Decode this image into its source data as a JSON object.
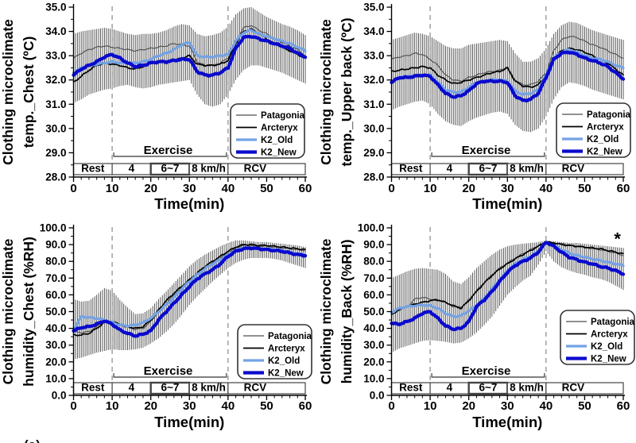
{
  "figure": {
    "caption_fragment": "(a)"
  },
  "colors": {
    "patagonia": "#4d4d4d",
    "arcteryx": "#000000",
    "k2_old": "#74a2e5",
    "k2_new": "#0a0ace",
    "error_bar": "#2e2e2e",
    "dashed_line": "#9a9a9a",
    "axis": "#000000",
    "phase_box_border": "#444444"
  },
  "series_meta": {
    "Patagonia": {
      "color": "#4d4d4d",
      "width": 1.1
    },
    "Arcteryx": {
      "color": "#000000",
      "width": 1.7
    },
    "K2_Old": {
      "color": "#74a2e5",
      "width": 3.2
    },
    "K2_New": {
      "color": "#0a0ace",
      "width": 4.3
    }
  },
  "legend_order": [
    "Patagonia",
    "Arcteryx",
    "K2_Old",
    "K2_New"
  ],
  "x_axis": {
    "label": "Time(min)",
    "ticks": [
      0,
      10,
      20,
      30,
      40,
      50,
      60
    ],
    "minor_step": 2,
    "range": [
      0,
      60
    ]
  },
  "phases": [
    {
      "label": "Rest",
      "from": 0,
      "to": 10,
      "bold": false
    },
    {
      "label": "4",
      "from": 10,
      "to": 20,
      "bold": false
    },
    {
      "label": "6~7",
      "from": 20,
      "to": 30,
      "bold": true
    },
    {
      "label": "8 km/h",
      "from": 30,
      "to": 40,
      "bold": false
    },
    {
      "label": "RCV",
      "from": 40,
      "to": 60,
      "bold": false,
      "label_at": 47
    }
  ],
  "exercise": {
    "label": "Exercise",
    "from": 10,
    "to": 40,
    "center_at": 24.5
  },
  "dashed_lines_x": [
    10,
    40
  ],
  "chart_data": [
    {
      "id": "temp_chest",
      "type": "line",
      "position": "top-left",
      "kind": "temp",
      "ylabel_line1": "Clothing microclimate",
      "ylabel_line2": "temp._Chest (ºC)",
      "xlabel": "Time(min)",
      "ylim": [
        28,
        35
      ],
      "ytick_step": 1,
      "ytick_labels": [
        "35.0",
        "34.0",
        "33.0",
        "32.0",
        "31.0",
        "30.0",
        "29.0",
        "28.0"
      ],
      "x_step": 2,
      "series": [
        {
          "name": "Patagonia",
          "values": [
            32.9,
            33.1,
            33.25,
            33.35,
            33.4,
            33.35,
            33.3,
            33.25,
            33.2,
            33.25,
            33.3,
            33.35,
            33.4,
            33.5,
            33.45,
            33.4,
            32.75,
            32.6,
            32.6,
            32.7,
            32.9,
            33.6,
            34.15,
            34.25,
            34.05,
            33.9,
            33.7,
            33.55,
            33.4,
            33.25,
            33.0
          ]
        },
        {
          "name": "Arcteryx",
          "values": [
            31.9,
            32.15,
            32.4,
            32.6,
            32.7,
            32.65,
            32.6,
            32.5,
            32.45,
            32.55,
            32.7,
            32.75,
            32.75,
            32.8,
            32.9,
            33.0,
            32.65,
            32.6,
            32.6,
            32.65,
            32.8,
            33.5,
            34.0,
            34.1,
            33.9,
            33.7,
            33.5,
            33.35,
            33.2,
            33.05,
            32.9
          ]
        },
        {
          "name": "K2_Old",
          "values": [
            32.3,
            32.5,
            32.6,
            32.65,
            32.7,
            32.75,
            32.7,
            32.7,
            32.7,
            32.75,
            32.85,
            33.0,
            33.1,
            33.25,
            33.45,
            33.55,
            33.0,
            32.95,
            32.95,
            33.0,
            33.05,
            33.6,
            33.95,
            34.05,
            33.9,
            33.8,
            33.7,
            33.6,
            33.5,
            33.35,
            33.2
          ]
        },
        {
          "name": "K2_New",
          "values": [
            32.2,
            32.45,
            32.6,
            32.75,
            32.95,
            33.05,
            32.9,
            32.7,
            32.55,
            32.6,
            32.7,
            32.75,
            32.75,
            32.8,
            32.85,
            32.85,
            32.35,
            32.2,
            32.2,
            32.3,
            32.5,
            33.3,
            33.75,
            33.8,
            33.7,
            33.6,
            33.5,
            33.4,
            33.3,
            33.1,
            32.95
          ]
        }
      ],
      "band": {
        "upper": [
          33.9,
          34.0,
          34.05,
          34.1,
          34.15,
          34.1,
          34.0,
          33.9,
          33.85,
          33.9,
          33.9,
          33.95,
          34.05,
          34.2,
          34.3,
          34.25,
          33.9,
          33.8,
          33.85,
          33.95,
          34.2,
          34.7,
          34.95,
          35.0,
          34.8,
          34.6,
          34.45,
          34.3,
          34.2,
          34.05,
          33.85
        ],
        "lower": [
          31.05,
          31.2,
          31.4,
          31.5,
          31.6,
          31.65,
          31.75,
          31.8,
          31.7,
          31.65,
          31.7,
          31.8,
          31.85,
          31.9,
          31.95,
          32.0,
          31.4,
          31.0,
          30.9,
          31.0,
          31.4,
          32.0,
          32.4,
          32.6,
          32.6,
          32.5,
          32.4,
          32.3,
          32.15,
          32.0,
          31.85
        ]
      },
      "legend_pos": [
        290,
        131
      ],
      "annotation": null
    },
    {
      "id": "temp_upper_back",
      "type": "line",
      "position": "top-right",
      "kind": "temp",
      "ylabel_line1": "Clothing microclimate",
      "ylabel_line2": "temp._Upper back (ºC)",
      "xlabel": "Time(min)",
      "ylim": [
        28,
        35
      ],
      "ytick_step": 1,
      "ytick_labels": [
        "35.0",
        "34.0",
        "33.0",
        "32.0",
        "31.0",
        "30.0",
        "29.0",
        "28.0"
      ],
      "x_step": 2,
      "series": [
        {
          "name": "Patagonia",
          "values": [
            32.85,
            32.95,
            33.0,
            33.1,
            33.05,
            32.85,
            32.6,
            32.2,
            32.0,
            31.95,
            32.1,
            32.2,
            32.3,
            32.35,
            32.4,
            32.5,
            32.0,
            31.8,
            31.8,
            31.95,
            32.3,
            33.2,
            33.65,
            33.8,
            33.75,
            33.6,
            33.45,
            33.35,
            33.2,
            33.05,
            32.9
          ]
        },
        {
          "name": "Arcteryx",
          "values": [
            32.35,
            32.4,
            32.45,
            32.5,
            32.55,
            32.5,
            32.2,
            32.0,
            31.85,
            31.9,
            32.0,
            32.1,
            32.2,
            32.3,
            32.35,
            32.5,
            31.95,
            31.75,
            31.7,
            31.8,
            32.2,
            32.9,
            33.2,
            33.3,
            33.25,
            33.15,
            33.0,
            32.85,
            32.7,
            32.45,
            32.2
          ]
        },
        {
          "name": "K2_Old",
          "values": [
            31.95,
            32.1,
            32.15,
            32.15,
            32.2,
            32.2,
            31.9,
            31.6,
            31.5,
            31.5,
            31.7,
            31.9,
            31.95,
            32.0,
            32.0,
            31.95,
            31.55,
            31.4,
            31.45,
            31.6,
            32.2,
            32.9,
            33.15,
            33.25,
            33.15,
            33.0,
            32.9,
            32.85,
            32.75,
            32.6,
            32.5
          ]
        },
        {
          "name": "K2_New",
          "values": [
            31.9,
            32.1,
            32.1,
            32.15,
            32.2,
            32.15,
            31.8,
            31.45,
            31.3,
            31.35,
            31.55,
            31.85,
            31.95,
            31.95,
            31.95,
            31.9,
            31.35,
            31.15,
            31.2,
            31.45,
            32.1,
            32.85,
            33.1,
            33.15,
            33.05,
            32.9,
            32.8,
            32.7,
            32.55,
            32.3,
            32.05
          ]
        }
      ],
      "band": {
        "upper": [
          33.65,
          33.75,
          33.85,
          33.95,
          33.9,
          33.8,
          33.6,
          33.4,
          33.3,
          33.3,
          33.45,
          33.5,
          33.55,
          33.6,
          33.65,
          33.6,
          33.1,
          32.75,
          32.75,
          32.9,
          33.3,
          33.9,
          34.25,
          34.4,
          34.35,
          34.2,
          34.05,
          33.95,
          33.85,
          33.75,
          33.65
        ],
        "lower": [
          30.75,
          30.9,
          31.0,
          31.1,
          31.15,
          31.0,
          30.6,
          30.3,
          30.15,
          30.1,
          30.3,
          30.45,
          30.55,
          30.65,
          30.7,
          30.6,
          30.15,
          29.9,
          29.85,
          30.0,
          30.5,
          31.2,
          31.7,
          31.9,
          31.85,
          31.75,
          31.6,
          31.5,
          31.4,
          31.3,
          31.2
        ]
      },
      "legend_pos": [
        300,
        130
      ],
      "annotation": null
    },
    {
      "id": "humidity_chest",
      "type": "line",
      "position": "bottom-left",
      "kind": "hum",
      "ylabel_line1": "Clothing microclimate",
      "ylabel_line2": "humidity_Chest (%RH)",
      "xlabel": "Time(min)",
      "ylim": [
        0,
        100
      ],
      "ytick_step": 10,
      "ytick_labels": [
        "100.0",
        "90.0",
        "80.0",
        "70.0",
        "60.0",
        "50.0",
        "40.0",
        "30.0",
        "20.0",
        "10.0",
        "0.0"
      ],
      "x_step": 2,
      "series": [
        {
          "name": "Patagonia",
          "values": [
            38,
            37.5,
            38,
            41,
            44,
            43.5,
            42,
            40.5,
            39.5,
            40,
            44,
            50,
            55,
            60,
            64,
            68,
            72,
            76,
            79,
            82,
            85,
            88,
            89.5,
            89.5,
            89,
            89,
            88.5,
            88,
            87.5,
            87,
            86.5
          ]
        },
        {
          "name": "Arcteryx",
          "values": [
            36,
            36,
            37,
            40,
            43.5,
            44,
            42.5,
            41,
            40,
            41,
            45,
            51,
            56.5,
            61,
            65,
            69,
            73,
            77,
            80,
            83,
            86,
            88.5,
            90,
            90,
            89.5,
            89.5,
            89,
            88.5,
            88,
            87.5,
            87
          ]
        },
        {
          "name": "K2_Old",
          "values": [
            39,
            47,
            46.5,
            46,
            45,
            43.5,
            42,
            41.5,
            42,
            43.5,
            46,
            50,
            54,
            58.5,
            63.5,
            68,
            72,
            75.5,
            78.5,
            81,
            84,
            86.5,
            88,
            88,
            87.5,
            87.5,
            87,
            86.5,
            85.5,
            84.5,
            84
          ]
        },
        {
          "name": "K2_New",
          "values": [
            38.5,
            40.5,
            41,
            42.5,
            44.5,
            42.5,
            39,
            37,
            35.5,
            36.5,
            38.5,
            45,
            50,
            55,
            60,
            65,
            69.5,
            72.5,
            75,
            78.5,
            83,
            86,
            87.5,
            88,
            87.5,
            87,
            86.5,
            86,
            85,
            84,
            83.5
          ]
        }
      ],
      "band": {
        "upper": [
          57.5,
          56,
          56.5,
          60,
          64,
          62.5,
          57,
          52.5,
          48.5,
          49,
          52,
          57.5,
          62,
          67,
          72,
          77,
          81,
          84,
          86.5,
          89,
          91,
          92.5,
          92.5,
          92,
          91.5,
          91.5,
          91,
          90.5,
          90,
          89.5,
          88.5
        ],
        "lower": [
          21.5,
          22.5,
          24,
          25.5,
          26.5,
          27.5,
          27,
          27,
          27.5,
          28.5,
          31,
          34,
          38,
          42.5,
          48,
          54,
          59,
          63.5,
          68,
          72,
          76,
          79,
          81,
          82,
          82,
          82,
          81.5,
          80.5,
          79,
          77.5,
          76
        ]
      },
      "legend_pos": [
        299,
        130
      ],
      "annotation": null
    },
    {
      "id": "humidity_back",
      "type": "line",
      "position": "bottom-right",
      "kind": "hum",
      "ylabel_line1": "Clothing microclimate",
      "ylabel_line2": "humidity_Back (%RH)",
      "xlabel": "Time(min)",
      "ylim": [
        0,
        100
      ],
      "ytick_step": 10,
      "ytick_labels": [
        "100.0",
        "90.0",
        "80.0",
        "70.0",
        "60.0",
        "50.0",
        "40.0",
        "30.0",
        "20.0",
        "10.0",
        "0.0"
      ],
      "x_step": 2,
      "series": [
        {
          "name": "Patagonia",
          "values": [
            48.5,
            51,
            52.5,
            57.5,
            58.5,
            57.5,
            57,
            55.5,
            53,
            52.5,
            57,
            62.5,
            67.5,
            72,
            76,
            79,
            82,
            84.5,
            87,
            89.5,
            91.5,
            91,
            90.5,
            89.5,
            89,
            88.5,
            87.5,
            87,
            86,
            85,
            83.5
          ]
        },
        {
          "name": "Arcteryx",
          "values": [
            48,
            51.5,
            53,
            54.5,
            55.5,
            56.5,
            57,
            55.5,
            53.5,
            52,
            56.5,
            62,
            67,
            71.5,
            75.5,
            78.5,
            81.5,
            84,
            86.5,
            89,
            91.5,
            91,
            90,
            89.5,
            89,
            88.5,
            88,
            87.5,
            86.5,
            85.5,
            84.5
          ]
        },
        {
          "name": "K2_Old",
          "values": [
            49.5,
            52,
            53,
            53.5,
            54,
            53.5,
            52,
            49,
            47,
            47.5,
            50.5,
            53.5,
            58,
            63.5,
            69,
            74.5,
            78.5,
            81,
            83,
            86,
            91,
            89.5,
            87,
            85,
            83.5,
            82.5,
            81.5,
            80.5,
            79.5,
            78.5,
            77.5
          ]
        },
        {
          "name": "K2_New",
          "values": [
            43,
            42.5,
            44,
            46,
            49,
            50,
            46,
            41.5,
            39.5,
            40,
            44,
            53,
            57,
            62,
            68,
            73.5,
            77.5,
            80,
            82,
            85.5,
            91.5,
            89,
            85.5,
            82.5,
            81,
            79.5,
            78.5,
            77,
            76,
            74.5,
            72.5
          ]
        }
      ],
      "band": {
        "upper": [
          70,
          72,
          74,
          75.5,
          76,
          75.5,
          75,
          72.5,
          68,
          66.5,
          70.5,
          76,
          80,
          84,
          87,
          89,
          90,
          90.5,
          91,
          91.5,
          92.5,
          92,
          91.5,
          91,
          91,
          90.5,
          90,
          89.5,
          89,
          88.5,
          88
        ],
        "lower": [
          25.5,
          28,
          29.5,
          31,
          32.5,
          33,
          32.5,
          32,
          31,
          31.5,
          34,
          37.5,
          42,
          47,
          53.5,
          60,
          64.5,
          68.5,
          71.5,
          78,
          86,
          80,
          76.5,
          74.5,
          73,
          72,
          70.5,
          69.5,
          68,
          65.5,
          63
        ]
      },
      "legend_pos": [
        305,
        112
      ],
      "annotation": {
        "text": "*",
        "x": 58.5,
        "y": 95.5
      }
    }
  ]
}
